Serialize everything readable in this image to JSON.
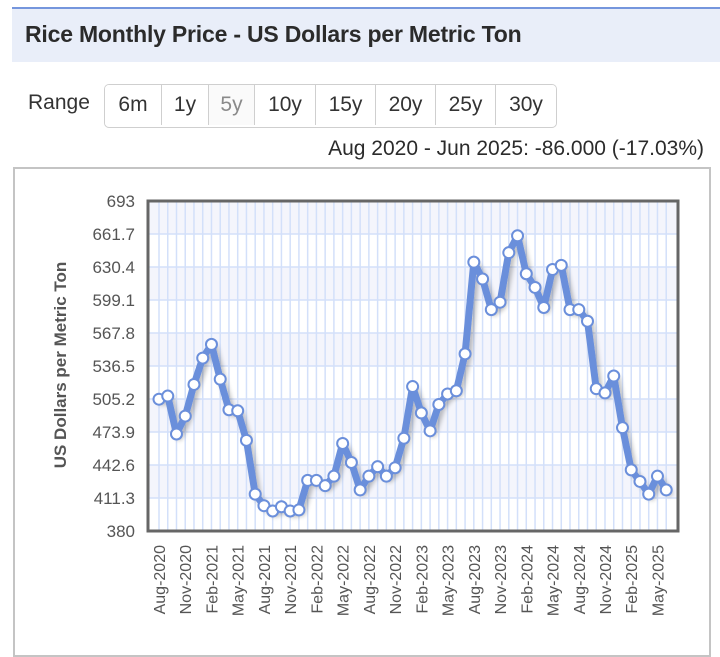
{
  "header": {
    "title": "Rice Monthly Price - US Dollars per Metric Ton"
  },
  "range": {
    "label": "Range",
    "buttons": [
      {
        "label": "6m",
        "active": false
      },
      {
        "label": "1y",
        "active": false
      },
      {
        "label": "5y",
        "active": true
      },
      {
        "label": "10y",
        "active": false
      },
      {
        "label": "15y",
        "active": false
      },
      {
        "label": "20y",
        "active": false
      },
      {
        "label": "25y",
        "active": false
      },
      {
        "label": "30y",
        "active": false
      }
    ]
  },
  "change_summary": "Aug 2020 - Jun 2025: -86.000 (-17.03%)",
  "colors": {
    "line": "#6b8fdb",
    "marker_fill": "#ffffff",
    "grid": "#d3e0fa",
    "band": "#f4f5fc",
    "frame": "#666666",
    "title_bg": "#e9eef9",
    "title_border": "#7596dd"
  },
  "chart_data": {
    "type": "line",
    "title": "Rice Monthly Price - US Dollars per Metric Ton",
    "xlabel": "",
    "ylabel": "US Dollars per Metric Ton",
    "ylim": [
      380,
      693
    ],
    "yticks": [
      "693",
      "661.7",
      "630.4",
      "599.1",
      "567.8",
      "536.5",
      "505.2",
      "473.9",
      "442.6",
      "411.3",
      "380"
    ],
    "ytick_values": [
      693,
      661.7,
      630.4,
      599.1,
      567.8,
      536.5,
      505.2,
      473.9,
      442.6,
      411.3,
      380
    ],
    "xtick_labels": [
      "Aug-2020",
      "Nov-2020",
      "Feb-2021",
      "May-2021",
      "Aug-2021",
      "Nov-2021",
      "Feb-2022",
      "May-2022",
      "Aug-2022",
      "Nov-2022",
      "Feb-2023",
      "May-2023",
      "Aug-2023",
      "Nov-2023",
      "Feb-2024",
      "May-2024",
      "Aug-2024",
      "Nov-2024",
      "Feb-2025",
      "May-2025"
    ],
    "grid": true,
    "legend": "none",
    "x": [
      "Aug-2020",
      "Sep-2020",
      "Oct-2020",
      "Nov-2020",
      "Dec-2020",
      "Jan-2021",
      "Feb-2021",
      "Mar-2021",
      "Apr-2021",
      "May-2021",
      "Jun-2021",
      "Jul-2021",
      "Aug-2021",
      "Sep-2021",
      "Oct-2021",
      "Nov-2021",
      "Dec-2021",
      "Jan-2022",
      "Feb-2022",
      "Mar-2022",
      "Apr-2022",
      "May-2022",
      "Jun-2022",
      "Jul-2022",
      "Aug-2022",
      "Sep-2022",
      "Oct-2022",
      "Nov-2022",
      "Dec-2022",
      "Jan-2023",
      "Feb-2023",
      "Mar-2023",
      "Apr-2023",
      "May-2023",
      "Jun-2023",
      "Jul-2023",
      "Aug-2023",
      "Sep-2023",
      "Oct-2023",
      "Nov-2023",
      "Dec-2023",
      "Jan-2024",
      "Feb-2024",
      "Mar-2024",
      "Apr-2024",
      "May-2024",
      "Jun-2024",
      "Jul-2024",
      "Aug-2024",
      "Sep-2024",
      "Oct-2024",
      "Nov-2024",
      "Dec-2024",
      "Jan-2025",
      "Feb-2025",
      "Mar-2025",
      "Apr-2025",
      "May-2025",
      "Jun-2025"
    ],
    "series": [
      {
        "name": "Rice Monthly Price",
        "values": [
          505,
          508,
          472,
          489,
          519,
          544,
          557,
          524,
          495,
          494,
          466,
          415,
          404,
          399,
          403,
          399,
          400,
          428,
          428,
          423,
          432,
          463,
          445,
          419,
          432,
          441,
          432,
          440,
          468,
          517,
          492,
          475,
          500,
          510,
          513,
          548,
          635,
          619,
          590,
          597,
          644,
          660,
          624,
          611,
          592,
          628,
          632,
          590,
          590,
          579,
          515,
          511,
          527,
          478,
          438,
          427,
          415,
          432,
          419
        ]
      }
    ]
  }
}
